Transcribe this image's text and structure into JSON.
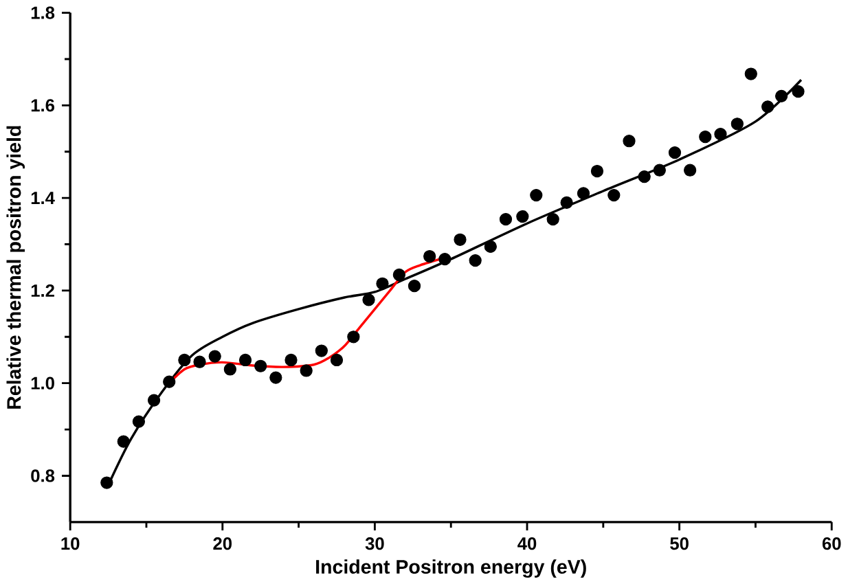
{
  "chart_data": {
    "type": "scatter",
    "xlabel": "Incident Positron energy (eV)",
    "ylabel": "Relative thermal positron yield",
    "xlim": [
      10,
      60
    ],
    "xticks": [
      10,
      20,
      30,
      40,
      50,
      60
    ],
    "ylim": [
      0.7,
      1.8
    ],
    "yticks": [
      0.8,
      {
        "value": 1.0,
        "label": "1.0"
      },
      1.2,
      1.4,
      1.6,
      1.8
    ],
    "grid": false,
    "marker": "circle",
    "series": [
      {
        "color": "#000000",
        "x": [
          12.4,
          13.5,
          14.5,
          15.5,
          16.5,
          17.5,
          18.5,
          19.5,
          20.5,
          21.5,
          22.5,
          23.5,
          24.5,
          25.5,
          26.5,
          27.5,
          28.6,
          29.6,
          30.5,
          31.6,
          32.6,
          33.6,
          34.6,
          35.6,
          36.6,
          37.6,
          38.6,
          39.7,
          40.6,
          41.7,
          42.6,
          43.7,
          44.6,
          45.7,
          46.7,
          47.7,
          48.7,
          49.7,
          50.7,
          51.7,
          52.7,
          53.8,
          54.7,
          55.8,
          56.7,
          57.8
        ],
        "values": [
          0.785,
          0.874,
          0.917,
          0.963,
          1.003,
          1.05,
          1.046,
          1.058,
          1.03,
          1.05,
          1.037,
          1.012,
          1.05,
          1.027,
          1.07,
          1.05,
          1.1,
          1.18,
          1.215,
          1.234,
          1.21,
          1.274,
          1.268,
          1.31,
          1.265,
          1.295,
          1.354,
          1.36,
          1.406,
          1.354,
          1.39,
          1.41,
          1.458,
          1.406,
          1.523,
          1.446,
          1.46,
          1.498,
          1.46,
          1.532,
          1.538,
          1.56,
          1.668,
          1.597,
          1.62,
          1.63
        ]
      },
      {
        "type": "line",
        "color": "#000000",
        "marker": "none",
        "x": [
          12.5,
          14,
          16,
          18,
          20,
          22,
          25,
          28,
          30,
          32,
          35,
          40,
          45,
          50,
          55,
          58
        ],
        "values": [
          0.78,
          0.88,
          0.98,
          1.06,
          1.1,
          1.13,
          1.16,
          1.185,
          1.197,
          1.225,
          1.268,
          1.345,
          1.415,
          1.483,
          1.565,
          1.655
        ]
      },
      {
        "type": "line",
        "color": "#ff0000",
        "marker": "none",
        "x": [
          16.5,
          17.5,
          18.5,
          20,
          22,
          24,
          26,
          27,
          28,
          29,
          30,
          31,
          32,
          33,
          34.5
        ],
        "values": [
          1.0,
          1.03,
          1.04,
          1.045,
          1.038,
          1.035,
          1.04,
          1.055,
          1.08,
          1.12,
          1.16,
          1.2,
          1.24,
          1.255,
          1.27
        ]
      }
    ]
  }
}
